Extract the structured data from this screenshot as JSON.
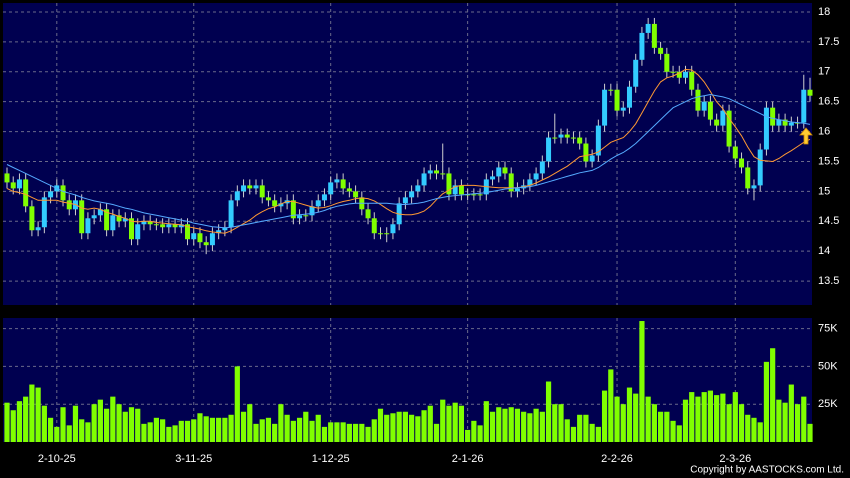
{
  "chart_data": {
    "type": "candlestick",
    "credit": "Copyright by AASTOCKS.com Ltd.",
    "categories": [
      null,
      null,
      null,
      null,
      null,
      null,
      null,
      null,
      "2-10-25",
      null,
      null,
      null,
      null,
      null,
      null,
      null,
      null,
      null,
      null,
      null,
      null,
      null,
      null,
      null,
      null,
      null,
      null,
      null,
      null,
      null,
      "3-11-25",
      null,
      null,
      null,
      null,
      null,
      null,
      null,
      null,
      null,
      null,
      null,
      null,
      null,
      null,
      null,
      null,
      null,
      null,
      null,
      null,
      null,
      "1-12-25",
      null,
      null,
      null,
      null,
      null,
      null,
      null,
      null,
      null,
      null,
      null,
      null,
      null,
      null,
      null,
      null,
      null,
      null,
      null,
      null,
      null,
      "2-1-26",
      null,
      null,
      null,
      null,
      null,
      null,
      null,
      null,
      null,
      null,
      null,
      null,
      null,
      null,
      null,
      null,
      null,
      null,
      null,
      null,
      null,
      null,
      null,
      "2-2-26",
      null,
      null,
      null,
      null,
      null,
      null,
      null,
      null,
      null,
      null,
      null,
      null,
      null,
      null,
      null,
      null,
      null,
      null,
      "2-3-26",
      null,
      null,
      null,
      null,
      null,
      null,
      null,
      null,
      null,
      null,
      null,
      null
    ],
    "open": [
      15.3,
      15.15,
      15.05,
      15.2,
      14.75,
      14.35,
      14.4,
      14.9,
      15.0,
      15.1,
      14.85,
      14.7,
      14.85,
      14.3,
      14.55,
      14.6,
      14.7,
      14.35,
      14.6,
      14.5,
      14.55,
      14.2,
      14.45,
      14.5,
      14.45,
      14.45,
      14.4,
      14.45,
      14.4,
      14.45,
      14.2,
      14.3,
      14.15,
      14.1,
      14.3,
      14.35,
      14.4,
      14.85,
      15.0,
      15.1,
      15.05,
      15.1,
      14.9,
      14.85,
      14.75,
      14.8,
      14.85,
      14.55,
      14.6,
      14.6,
      14.75,
      14.85,
      14.95,
      15.15,
      15.2,
      15.05,
      15.0,
      14.9,
      14.7,
      14.55,
      14.3,
      14.3,
      14.3,
      14.45,
      14.8,
      14.9,
      15.0,
      15.1,
      15.3,
      15.35,
      15.3,
      15.3,
      14.95,
      15.1,
      14.95,
      14.95,
      14.95,
      14.95,
      15.2,
      15.25,
      15.4,
      15.3,
      15.0,
      15.05,
      15.1,
      15.2,
      15.3,
      15.5,
      15.9,
      15.9,
      15.95,
      15.9,
      15.9,
      15.8,
      15.5,
      15.6,
      16.1,
      16.7,
      16.7,
      16.35,
      16.4,
      16.75,
      17.2,
      17.65,
      17.8,
      17.4,
      17.3,
      17.0,
      17.0,
      16.9,
      17.0,
      16.7,
      16.35,
      16.5,
      16.2,
      16.1,
      16.35,
      15.75,
      15.55,
      15.4,
      15.05,
      15.1,
      15.7,
      16.4,
      16.1,
      16.2,
      16.1,
      16.15,
      16.15,
      16.7
    ],
    "high": [
      15.4,
      15.25,
      15.3,
      15.3,
      14.85,
      14.5,
      15.0,
      15.1,
      15.2,
      15.2,
      14.95,
      14.95,
      14.95,
      14.65,
      14.7,
      14.8,
      14.8,
      14.7,
      14.7,
      14.65,
      14.65,
      14.55,
      14.6,
      14.6,
      14.55,
      14.55,
      14.55,
      14.55,
      14.55,
      14.55,
      14.4,
      14.4,
      14.25,
      14.4,
      14.45,
      14.5,
      14.95,
      15.1,
      15.2,
      15.2,
      15.2,
      15.2,
      15.0,
      14.95,
      14.9,
      14.95,
      14.95,
      14.7,
      14.7,
      14.85,
      14.95,
      15.05,
      15.25,
      15.3,
      15.3,
      15.15,
      15.1,
      15.0,
      14.8,
      14.65,
      14.4,
      14.4,
      14.55,
      14.9,
      15.0,
      15.1,
      15.2,
      15.4,
      15.45,
      15.45,
      15.8,
      15.4,
      15.2,
      15.2,
      15.05,
      15.05,
      15.05,
      15.3,
      15.35,
      15.5,
      15.5,
      15.4,
      15.15,
      15.2,
      15.3,
      15.4,
      15.6,
      16.0,
      16.3,
      16.05,
      16.05,
      16.0,
      16.0,
      15.9,
      15.7,
      16.2,
      16.8,
      16.8,
      16.8,
      16.5,
      16.85,
      17.3,
      17.75,
      17.9,
      17.9,
      17.5,
      17.4,
      17.1,
      17.1,
      17.1,
      17.1,
      16.8,
      16.6,
      16.6,
      16.3,
      16.45,
      16.45,
      15.85,
      15.65,
      15.5,
      15.2,
      15.8,
      16.5,
      16.5,
      16.3,
      16.3,
      16.25,
      16.25,
      16.95,
      16.9
    ],
    "low": [
      15.05,
      14.95,
      14.95,
      14.65,
      14.25,
      14.25,
      14.3,
      14.8,
      14.9,
      14.75,
      14.6,
      14.6,
      14.2,
      14.2,
      14.45,
      14.5,
      14.25,
      14.25,
      14.4,
      14.4,
      14.1,
      14.1,
      14.35,
      14.35,
      14.35,
      14.3,
      14.3,
      14.3,
      14.3,
      14.1,
      14.1,
      14.05,
      13.95,
      14.0,
      14.2,
      14.25,
      14.3,
      14.75,
      14.9,
      14.95,
      14.95,
      14.8,
      14.75,
      14.65,
      14.65,
      14.7,
      14.45,
      14.45,
      14.5,
      14.5,
      14.65,
      14.75,
      14.85,
      15.05,
      14.95,
      14.9,
      14.8,
      14.6,
      14.45,
      14.2,
      14.2,
      14.15,
      14.2,
      14.35,
      14.7,
      14.8,
      14.9,
      15.0,
      15.2,
      15.2,
      15.2,
      14.85,
      14.85,
      14.85,
      14.85,
      14.85,
      14.85,
      14.85,
      15.1,
      15.15,
      15.2,
      14.9,
      14.9,
      14.95,
      15.0,
      15.1,
      15.2,
      15.4,
      15.8,
      15.8,
      15.8,
      15.8,
      15.7,
      15.4,
      15.4,
      15.5,
      16.0,
      16.6,
      16.25,
      16.25,
      16.3,
      16.65,
      17.1,
      17.55,
      17.3,
      17.2,
      16.9,
      16.9,
      16.8,
      16.8,
      16.6,
      16.25,
      16.25,
      16.1,
      16.0,
      16.0,
      15.65,
      15.45,
      15.3,
      14.95,
      14.85,
      15.0,
      15.6,
      16.0,
      16.0,
      16.0,
      16.0,
      16.05,
      16.05,
      16.5
    ],
    "close": [
      15.15,
      15.05,
      15.2,
      14.75,
      14.35,
      14.4,
      14.9,
      15.0,
      15.1,
      14.85,
      14.7,
      14.85,
      14.3,
      14.55,
      14.6,
      14.7,
      14.35,
      14.6,
      14.5,
      14.55,
      14.2,
      14.45,
      14.5,
      14.45,
      14.45,
      14.4,
      14.45,
      14.4,
      14.45,
      14.2,
      14.3,
      14.15,
      14.1,
      14.3,
      14.35,
      14.4,
      14.85,
      15.0,
      15.1,
      15.05,
      15.1,
      14.9,
      14.85,
      14.75,
      14.8,
      14.85,
      14.55,
      14.6,
      14.6,
      14.75,
      14.85,
      14.95,
      15.15,
      15.2,
      15.05,
      15.0,
      14.9,
      14.7,
      14.55,
      14.3,
      14.3,
      14.3,
      14.45,
      14.8,
      14.9,
      15.0,
      15.1,
      15.3,
      15.35,
      15.3,
      15.3,
      14.95,
      15.1,
      14.95,
      14.95,
      14.95,
      14.95,
      15.2,
      15.25,
      15.4,
      15.3,
      15.0,
      15.05,
      15.1,
      15.2,
      15.3,
      15.5,
      15.9,
      15.9,
      15.95,
      15.9,
      15.9,
      15.8,
      15.5,
      15.6,
      16.1,
      16.7,
      16.7,
      16.35,
      16.4,
      16.75,
      17.2,
      17.65,
      17.8,
      17.4,
      17.3,
      17.0,
      17.0,
      16.9,
      17.0,
      16.7,
      16.35,
      16.5,
      16.2,
      16.1,
      16.35,
      15.75,
      15.55,
      15.4,
      15.05,
      15.1,
      15.7,
      16.4,
      16.1,
      16.2,
      16.1,
      16.15,
      16.15,
      16.7,
      16.6
    ],
    "up_color": "#33ccff",
    "down_color": "#80ff00",
    "lines": [
      {
        "color": "#ff9933",
        "values": [
          15.05,
          15.0,
          14.98,
          14.95,
          14.9,
          14.85,
          14.85,
          14.85,
          14.85,
          14.82,
          14.8,
          14.78,
          14.72,
          14.7,
          14.72,
          14.7,
          14.65,
          14.62,
          14.58,
          14.55,
          14.5,
          14.49,
          14.5,
          14.5,
          14.48,
          14.47,
          14.46,
          14.45,
          14.44,
          14.41,
          14.39,
          14.37,
          14.34,
          14.32,
          14.31,
          14.3,
          14.34,
          14.4,
          14.46,
          14.52,
          14.6,
          14.66,
          14.71,
          14.74,
          14.79,
          14.83,
          14.83,
          14.8,
          14.77,
          14.74,
          14.72,
          14.73,
          14.76,
          14.8,
          14.83,
          14.85,
          14.88,
          14.89,
          14.88,
          14.84,
          14.78,
          14.71,
          14.65,
          14.62,
          14.61,
          14.61,
          14.63,
          14.67,
          14.75,
          14.86,
          14.96,
          15.02,
          15.08,
          15.1,
          15.1,
          15.1,
          15.09,
          15.08,
          15.07,
          15.06,
          15.06,
          15.06,
          15.06,
          15.08,
          15.1,
          15.14,
          15.19,
          15.24,
          15.3,
          15.36,
          15.42,
          15.5,
          15.58,
          15.6,
          15.62,
          15.66,
          15.74,
          15.82,
          15.86,
          15.9,
          16.0,
          16.13,
          16.31,
          16.5,
          16.68,
          16.83,
          16.9,
          16.93,
          16.98,
          17.04,
          17.03,
          16.95,
          16.83,
          16.67,
          16.5,
          16.38,
          16.22,
          16.08,
          15.93,
          15.74,
          15.58,
          15.52,
          15.51,
          15.5,
          15.55,
          15.62,
          15.68,
          15.75,
          15.82,
          15.87
        ]
      },
      {
        "color": "#55aaff",
        "values": [
          15.45,
          15.4,
          15.35,
          15.3,
          15.25,
          15.2,
          15.15,
          15.1,
          15.05,
          15.0,
          14.97,
          14.94,
          14.9,
          14.87,
          14.84,
          14.82,
          14.8,
          14.78,
          14.75,
          14.72,
          14.7,
          14.67,
          14.64,
          14.62,
          14.6,
          14.58,
          14.56,
          14.54,
          14.52,
          14.5,
          14.47,
          14.45,
          14.43,
          14.41,
          14.4,
          14.39,
          14.4,
          14.42,
          14.44,
          14.46,
          14.48,
          14.5,
          14.52,
          14.54,
          14.56,
          14.58,
          14.6,
          14.61,
          14.62,
          14.63,
          14.65,
          14.68,
          14.72,
          14.75,
          14.77,
          14.79,
          14.8,
          14.8,
          14.8,
          14.8,
          14.8,
          14.8,
          14.79,
          14.78,
          14.78,
          14.79,
          14.8,
          14.82,
          14.85,
          14.88,
          14.9,
          14.92,
          14.93,
          14.94,
          14.95,
          14.96,
          14.97,
          14.98,
          15.0,
          15.02,
          15.04,
          15.05,
          15.06,
          15.07,
          15.08,
          15.1,
          15.13,
          15.16,
          15.19,
          15.22,
          15.25,
          15.28,
          15.31,
          15.33,
          15.35,
          15.4,
          15.47,
          15.54,
          15.6,
          15.65,
          15.72,
          15.8,
          15.9,
          16.0,
          16.1,
          16.2,
          16.3,
          16.4,
          16.45,
          16.5,
          16.55,
          16.58,
          16.6,
          16.62,
          16.6,
          16.58,
          16.55,
          16.5,
          16.45,
          16.4,
          16.35,
          16.3,
          16.25,
          16.22,
          16.2,
          16.18,
          16.16,
          16.15,
          16.14,
          16.12
        ]
      }
    ],
    "ylim": [
      13.1,
      18.15
    ],
    "yticks": [
      13.5,
      14,
      14.5,
      15,
      15.5,
      16,
      16.5,
      17,
      17.5,
      18
    ],
    "grid": true,
    "volume": {
      "color": "#80ff00",
      "values": [
        26000,
        21000,
        27000,
        30000,
        38000,
        36000,
        24000,
        16000,
        10000,
        23000,
        11000,
        24000,
        15000,
        13000,
        25000,
        28000,
        22000,
        30000,
        25000,
        20000,
        23000,
        22000,
        12000,
        13000,
        16000,
        15000,
        10000,
        11000,
        14000,
        14000,
        15000,
        19000,
        17000,
        16000,
        16000,
        16000,
        18000,
        50000,
        20000,
        25000,
        12000,
        15000,
        16000,
        12000,
        25000,
        18000,
        14000,
        16000,
        20000,
        14000,
        18000,
        10000,
        13000,
        13000,
        13000,
        12000,
        12000,
        12000,
        10000,
        15000,
        22000,
        18000,
        19000,
        20000,
        20000,
        18000,
        17000,
        21000,
        24000,
        12000,
        28000,
        24000,
        26000,
        24000,
        8000,
        14000,
        11000,
        27000,
        20000,
        23000,
        22000,
        23000,
        22000,
        20000,
        19000,
        22000,
        20000,
        40000,
        25000,
        25000,
        15000,
        10000,
        18000,
        18000,
        12000,
        10000,
        34000,
        48000,
        30000,
        25000,
        36000,
        32000,
        80000,
        30000,
        25000,
        20000,
        20000,
        14000,
        11000,
        28000,
        33000,
        30000,
        33000,
        34000,
        31000,
        32000,
        25000,
        33000,
        25000,
        18000,
        16000,
        13000,
        53000,
        62000,
        28000,
        26000,
        38000,
        25000,
        30000,
        12000
      ],
      "ylim": [
        0,
        82000
      ],
      "yticks": [
        {
          "value": 25000,
          "label": "25K"
        },
        {
          "value": 50000,
          "label": "50K"
        },
        {
          "value": 75000,
          "label": "75K"
        }
      ]
    }
  }
}
